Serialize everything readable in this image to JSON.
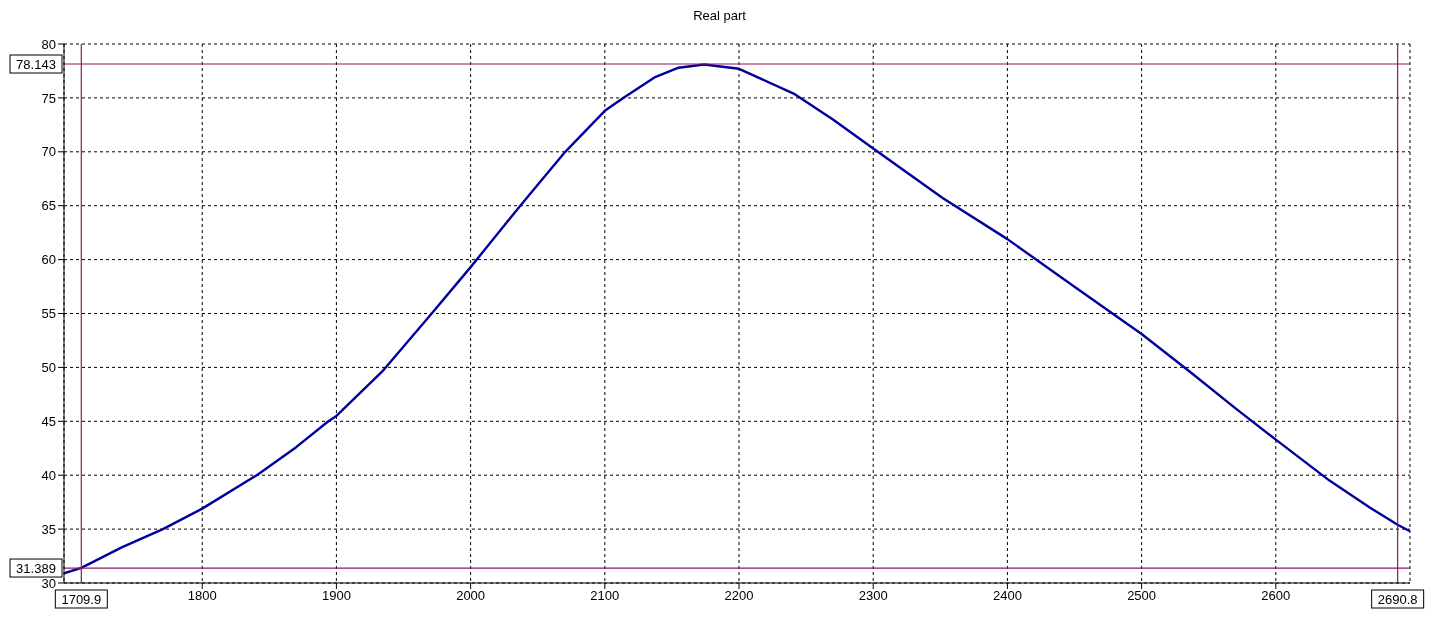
{
  "chart_data": {
    "type": "line",
    "title": "Real part",
    "x": [
      1697,
      1709.9,
      1740,
      1770.7,
      1800,
      1840.7,
      1870,
      1894,
      1900,
      1934,
      1971,
      2000,
      2037,
      2070.5,
      2100,
      2113.7,
      2137,
      2155,
      2174,
      2200,
      2240.7,
      2270,
      2300,
      2352,
      2400,
      2449.7,
      2500,
      2536,
      2570,
      2600,
      2640,
      2670,
      2690.8,
      2700
    ],
    "series": [
      {
        "color": "#00009c",
        "values": [
          30.9,
          31.4,
          33.3,
          35.0,
          36.9,
          40.0,
          42.6,
          45.0,
          45.5,
          49.6,
          55.0,
          59.3,
          65.0,
          70.0,
          73.8,
          75.0,
          76.9,
          77.8,
          78.1,
          77.7,
          75.4,
          73.0,
          70.3,
          65.7,
          61.9,
          57.5,
          53.1,
          49.6,
          46.2,
          43.3,
          39.5,
          37.0,
          35.4,
          34.8
        ]
      }
    ],
    "xlim": [
      1697,
      2700
    ],
    "xticks": [
      1800,
      1900,
      2000,
      2100,
      2200,
      2300,
      2400,
      2500,
      2600
    ],
    "ylim": [
      30,
      80
    ],
    "yticks": [
      30,
      35,
      40,
      45,
      50,
      55,
      60,
      65,
      70,
      75,
      80
    ],
    "grid": true,
    "marker": "none",
    "line_style": "solid",
    "ref_lines": [
      {
        "axis": "x",
        "value": 1709.9,
        "label": "1709.9",
        "color": "#8b1a5c"
      },
      {
        "axis": "x",
        "value": 2690.8,
        "label": "2690.8",
        "color": "#8b1a5c"
      },
      {
        "axis": "y",
        "value": 78.143,
        "label": "78.143",
        "color": "#8b1a5c"
      },
      {
        "axis": "y",
        "value": 31.389,
        "label": "31.389",
        "color": "#8b1a5c"
      }
    ]
  }
}
